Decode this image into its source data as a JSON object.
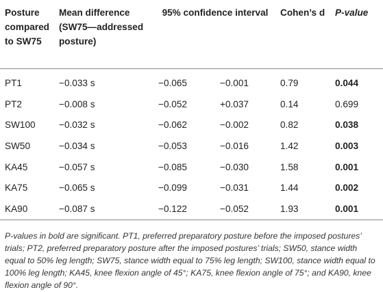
{
  "table": {
    "headers": {
      "posture": "Posture compared to SW75",
      "mean_diff": "Mean difference (SW75—addressed posture)",
      "ci": "95% confidence interval",
      "cohens_d": "Cohen’s d",
      "p_value": "P-value"
    },
    "rows": [
      {
        "posture": "PT1",
        "mean": "−0.033 s",
        "ci_low": "−0.065",
        "ci_high": "−0.001",
        "d": "0.79",
        "p": "0.044",
        "sig": true
      },
      {
        "posture": "PT2",
        "mean": "−0.008 s",
        "ci_low": "−0.052",
        "ci_high": "+0.037",
        "d": "0.14",
        "p": "0.699",
        "sig": false
      },
      {
        "posture": "SW100",
        "mean": "−0.032 s",
        "ci_low": "−0.062",
        "ci_high": "−0.002",
        "d": "0.82",
        "p": "0.038",
        "sig": true
      },
      {
        "posture": "SW50",
        "mean": "−0.034 s",
        "ci_low": "−0.053",
        "ci_high": "−0.016",
        "d": "1.42",
        "p": "0.003",
        "sig": true
      },
      {
        "posture": "KA45",
        "mean": "−0.057 s",
        "ci_low": "−0.085",
        "ci_high": "−0.030",
        "d": "1.58",
        "p": "0.001",
        "sig": true
      },
      {
        "posture": "KA75",
        "mean": "−0.065 s",
        "ci_low": "−0.099",
        "ci_high": "−0.031",
        "d": "1.44",
        "p": "0.002",
        "sig": true
      },
      {
        "posture": "KA90",
        "mean": "−0.087 s",
        "ci_low": "−0.122",
        "ci_high": "−0.052",
        "d": "1.93",
        "p": "0.001",
        "sig": true
      }
    ]
  },
  "footnote": "P-values in bold are significant. PT1, preferred preparatory posture before the imposed postures’ trials; PT2, preferred preparatory posture after the imposed postures’ trials; SW50, stance width equal to 50% leg length; SW75, stance width equal to 75% leg length; SW100, stance width equal to 100% leg length; KA45, knee flexion angle of 45°; KA75, knee flexion angle of 75°; and KA90, knee flexion angle of 90°."
}
